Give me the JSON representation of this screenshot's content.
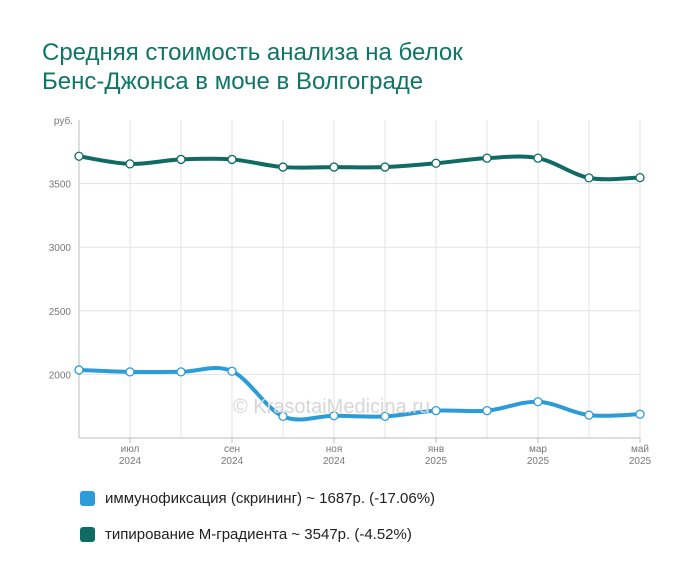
{
  "title_lines": [
    "Средняя стоимость анализа на белок",
    "Бенс-Джонса в моче в Волгограде"
  ],
  "watermark": "© KrasotaiMedicina.ru",
  "chart_data": {
    "type": "line",
    "unit_label": "руб.",
    "y_ticks": [
      "3500",
      "3000",
      "2500",
      "2000"
    ],
    "y_tick_values": [
      3500,
      3000,
      2500,
      2000
    ],
    "ylim": [
      1500,
      4000
    ],
    "x_tick_labels": [
      {
        "month": "июл",
        "year": "2024",
        "index": 1
      },
      {
        "month": "сен",
        "year": "2024",
        "index": 3
      },
      {
        "month": "ноя",
        "year": "2024",
        "index": 5
      },
      {
        "month": "янв",
        "year": "2025",
        "index": 7
      },
      {
        "month": "мар",
        "year": "2025",
        "index": 9
      },
      {
        "month": "май",
        "year": "2025",
        "index": 11
      }
    ],
    "x": [
      "2024-06",
      "2024-07",
      "2024-08",
      "2024-09",
      "2024-10",
      "2024-11",
      "2024-12",
      "2025-01",
      "2025-02",
      "2025-03",
      "2025-04",
      "2025-05"
    ],
    "series": [
      {
        "name": "типирование М-градиента",
        "color": "#0f6b63",
        "values": [
          3715,
          3655,
          3690,
          3690,
          3630,
          3630,
          3630,
          3660,
          3700,
          3700,
          3545,
          3547
        ]
      },
      {
        "name": "иммунофиксация (скрининг)",
        "color": "#2b9cd8",
        "values": [
          2035,
          2020,
          2020,
          2025,
          1670,
          1675,
          1670,
          1715,
          1715,
          1785,
          1680,
          1687
        ]
      }
    ]
  },
  "legend": [
    {
      "label": "иммунофиксация (скрининг) ~ 1687р. (-17.06%)",
      "color": "#2b9cd8"
    },
    {
      "label": "типирование М-градиента ~ 3547р. (-4.52%)",
      "color": "#0f6b63"
    }
  ]
}
